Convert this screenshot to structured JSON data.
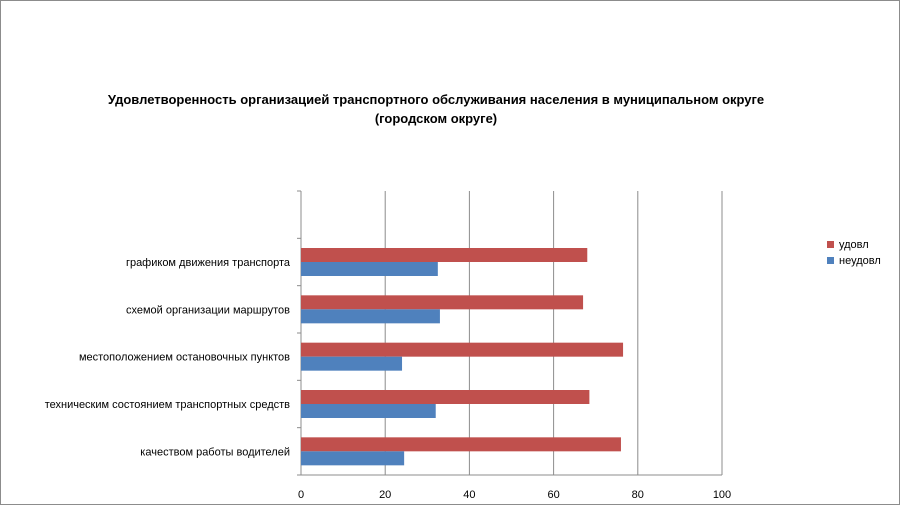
{
  "chart_data": {
    "type": "bar",
    "orientation": "horizontal",
    "title_line1": "Удовлетворенность организацией транспортного обслуживания населения в муниципальном округе",
    "title_line2": "(городском округе)",
    "categories": [
      "графиком движения транспорта",
      "схемой организации маршрутов",
      "местоположением остановочных пунктов",
      "техническим состоянием транспортных средств",
      "качеством работы водителей"
    ],
    "series": [
      {
        "name": "удовл",
        "color": "#c0504d",
        "values": [
          68,
          67,
          76.5,
          68.5,
          76
        ]
      },
      {
        "name": "неудовл",
        "color": "#4f81bd",
        "values": [
          32.5,
          33,
          24,
          32,
          24.5
        ]
      }
    ],
    "xlim": [
      0,
      100
    ],
    "xticks": [
      "0",
      "20",
      "40",
      "60",
      "80",
      "100"
    ],
    "grid": true,
    "legend_position": "right"
  }
}
